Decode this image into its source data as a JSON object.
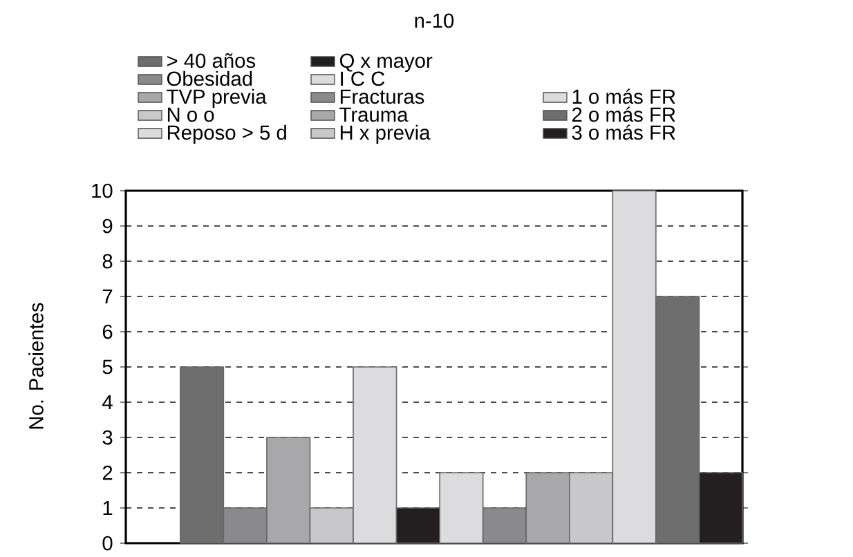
{
  "chart_data": {
    "type": "bar",
    "title": "n-10",
    "ylabel": "No. Pacientes",
    "categories": [
      null
    ],
    "series": [
      {
        "name": "> 40 años",
        "color": "#6e6e6e",
        "values": [
          5
        ]
      },
      {
        "name": "Obesidad",
        "color": "#8a8a8c",
        "values": [
          1
        ]
      },
      {
        "name": "TVP previa",
        "color": "#a8a8aa",
        "values": [
          3
        ]
      },
      {
        "name": "N o o",
        "color": "#c8c8ca",
        "values": [
          1
        ]
      },
      {
        "name": "Reposo > 5 d",
        "color": "#dcdcde",
        "values": [
          5
        ]
      },
      {
        "name": "Q x mayor",
        "color": "#231f20",
        "values": [
          1
        ]
      },
      {
        "name": "I C C",
        "color": "#dcdcde",
        "values": [
          2
        ]
      },
      {
        "name": "Fracturas",
        "color": "#8a8a8c",
        "values": [
          1
        ]
      },
      {
        "name": "Trauma",
        "color": "#a8a8aa",
        "values": [
          2
        ]
      },
      {
        "name": "H x previa",
        "color": "#c8c8ca",
        "values": [
          2
        ]
      },
      {
        "name": "1 o más FR",
        "color": "#dcdcde",
        "values": [
          10
        ]
      },
      {
        "name": "2 o más FR",
        "color": "#6e6e6e",
        "values": [
          7
        ]
      },
      {
        "name": "3 o más FR",
        "color": "#231f20",
        "values": [
          2
        ]
      }
    ],
    "ylim": [
      0,
      10
    ],
    "yticks": [
      0,
      1,
      2,
      3,
      4,
      5,
      6,
      7,
      8,
      9,
      10
    ],
    "grid": "y",
    "legend": "top",
    "tick_labels": "y"
  }
}
